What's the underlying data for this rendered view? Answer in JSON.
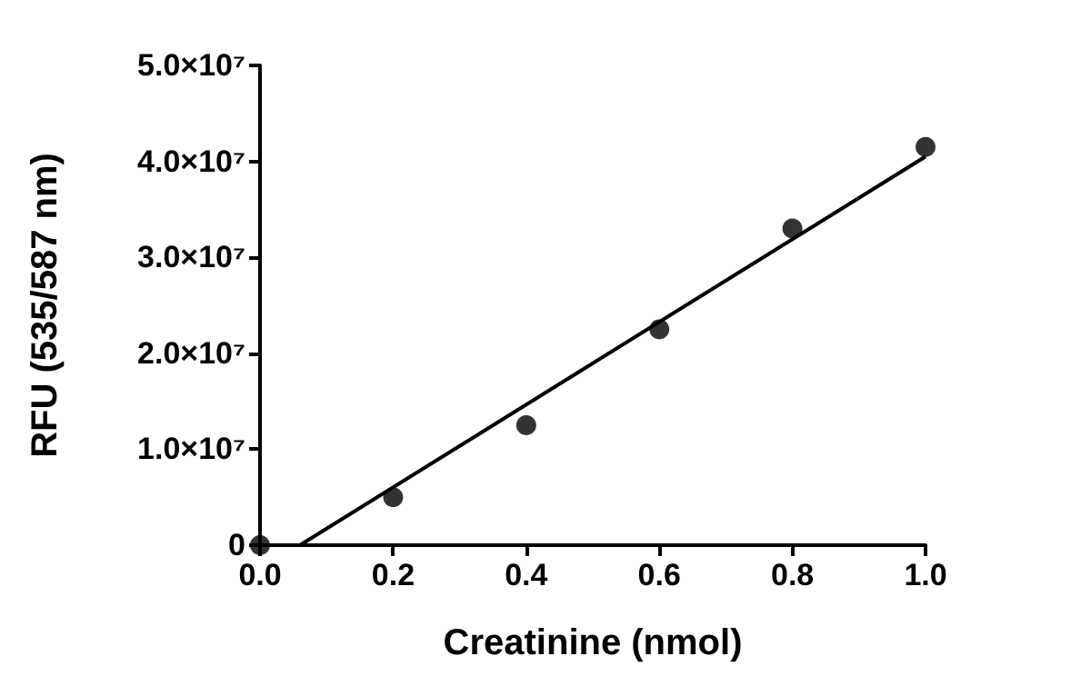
{
  "chart_data": {
    "type": "scatter",
    "xlabel": "Creatinine (nmol)",
    "ylabel": "RFU (535/587 nm)",
    "series": [
      {
        "color": "#000000",
        "marker": "circle",
        "x": [
          0,
          0.2,
          0.4,
          0.6,
          0.8,
          1.0
        ],
        "values": [
          0,
          5000000,
          12500000,
          22500000,
          33000000,
          41500000
        ]
      },
      {
        "type": "line",
        "color": "#000000",
        "marker": "none",
        "line_style": "solid",
        "x": [
          0.06,
          1.0
        ],
        "values": [
          0,
          40500000
        ]
      }
    ],
    "xlim": [
      0,
      1.0
    ],
    "xticks": [
      {
        "value": 0,
        "label": "0.0"
      },
      {
        "value": 0.2,
        "label": "0.2"
      },
      {
        "value": 0.4,
        "label": "0.4"
      },
      {
        "value": 0.6,
        "label": "0.6"
      },
      {
        "value": 0.8,
        "label": "0.8"
      },
      {
        "value": 1.0,
        "label": "1.0"
      }
    ],
    "ylim": [
      0,
      50000000
    ],
    "yticks": [
      0,
      {
        "value": 10000000,
        "label": "1.0×10⁷"
      },
      {
        "value": 20000000,
        "label": "2.0×10⁷"
      },
      {
        "value": 30000000,
        "label": "3.0×10⁷"
      },
      {
        "value": 40000000,
        "label": "4.0×10⁷"
      },
      {
        "value": 50000000,
        "label": "5.0×10⁷"
      }
    ],
    "grid": false
  }
}
